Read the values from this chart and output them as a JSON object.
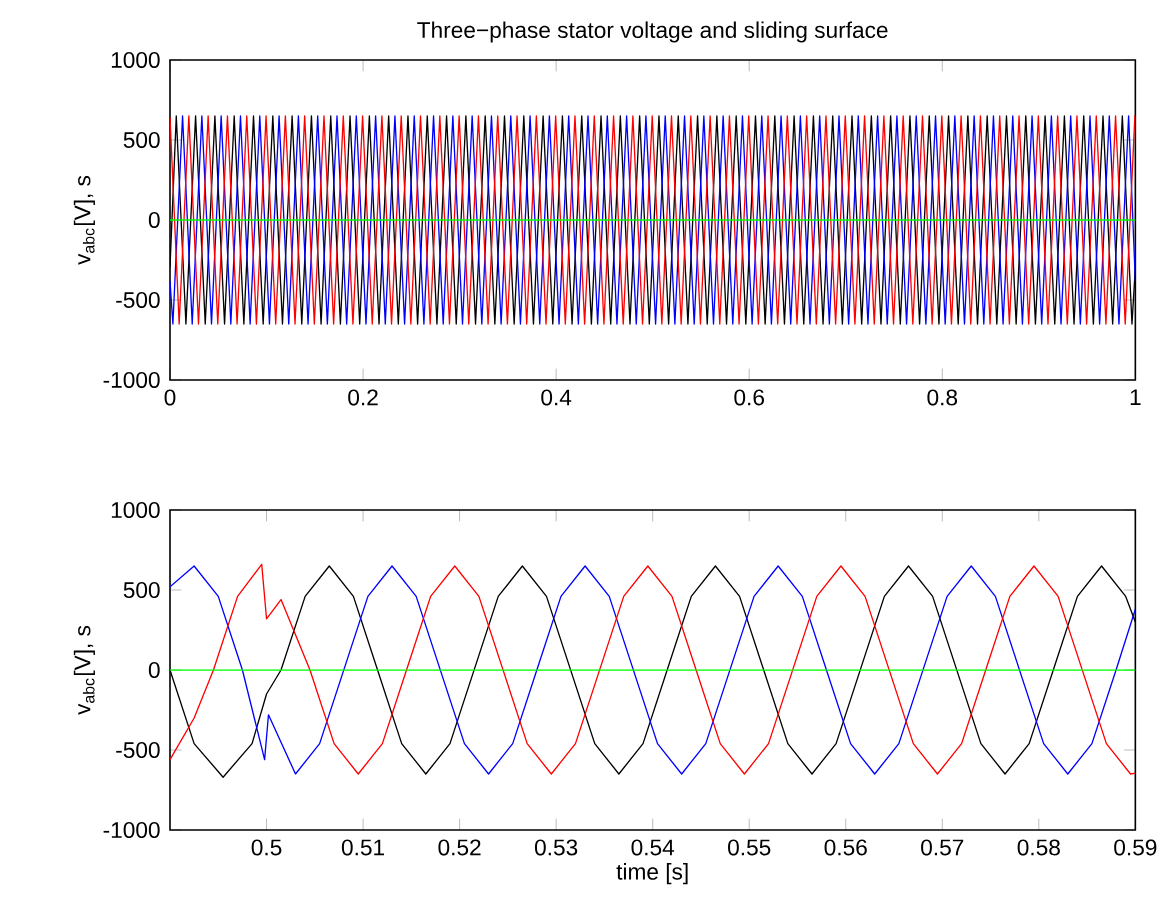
{
  "chart_data": [
    {
      "type": "line",
      "title": "Three−phase stator voltage and sliding surface",
      "ylabel": "v$_{abc}$[V], s",
      "xlim": [
        0,
        1
      ],
      "ylim": [
        -1000,
        1000
      ],
      "xticks": [
        0,
        0.2,
        0.4,
        0.6,
        0.8,
        1
      ],
      "yticks": [
        -1000,
        -500,
        0,
        500,
        1000
      ],
      "series": [
        {
          "color": "#000000",
          "x": [
            0,
            0.0065,
            0.0165,
            0.0265,
            0.0365,
            0.0465,
            0.0565,
            0.0665,
            0.0765,
            0.0865,
            0.0965,
            0.1065,
            0.1165,
            0.1265,
            0.1365,
            0.1465,
            0.1565,
            0.1665,
            0.1765,
            0.1865,
            0.1965,
            0.2065,
            0.2165,
            0.2265,
            0.2365,
            0.2465,
            0.2565,
            0.2665,
            0.2765,
            0.2865,
            0.2965,
            0.3065,
            0.3165,
            0.3265,
            0.3365,
            0.3465,
            0.3565,
            0.3665,
            0.3765,
            0.3865,
            0.3965,
            0.4065,
            0.4165,
            0.4265,
            0.4365,
            0.4465,
            0.4565,
            0.4665,
            0.4765,
            0.4865,
            0.4965,
            0.5065,
            0.5165,
            0.5265,
            0.5365,
            0.5465,
            0.5565,
            0.5665,
            0.5765,
            0.5865,
            0.5965,
            0.6065,
            0.6165,
            0.6265,
            0.6365,
            0.6465,
            0.6565,
            0.6665,
            0.6765,
            0.6865,
            0.6965,
            0.7065,
            0.7165,
            0.7265,
            0.7365,
            0.7465,
            0.7565,
            0.7665,
            0.7765,
            0.7865,
            0.7965,
            0.8065,
            0.8165,
            0.8265,
            0.8365,
            0.8465,
            0.8565,
            0.8665,
            0.8765,
            0.8865,
            0.8965,
            0.9065,
            0.9165,
            0.9265,
            0.9365,
            0.9465,
            0.9565,
            0.9665,
            0.9765,
            0.9865,
            0.9965,
            1
          ],
          "values": [
            -295,
            650,
            -650,
            650,
            -650,
            650,
            -650,
            650,
            -650,
            650,
            -650,
            650,
            -650,
            650,
            -650,
            650,
            -650,
            650,
            -650,
            650,
            -650,
            650,
            -650,
            650,
            -650,
            650,
            -650,
            650,
            -650,
            650,
            -650,
            650,
            -650,
            650,
            -650,
            650,
            -650,
            650,
            -650,
            650,
            -650,
            650,
            -650,
            650,
            -650,
            650,
            -650,
            650,
            -650,
            650,
            -650,
            650,
            -650,
            650,
            -650,
            650,
            -650,
            650,
            -650,
            650,
            -650,
            650,
            -650,
            650,
            -650,
            650,
            -650,
            650,
            -650,
            650,
            -650,
            650,
            -650,
            650,
            -650,
            650,
            -650,
            650,
            -650,
            650,
            -650,
            650,
            -650,
            650,
            -650,
            650,
            -650,
            650,
            -650,
            650,
            -650,
            650,
            -650,
            650,
            -650,
            650,
            -650,
            650,
            -650,
            650,
            -650,
            -295
          ]
        },
        {
          "color": "#0000ff",
          "x": [
            0,
            0.003,
            0.013,
            0.023,
            0.033,
            0.043,
            0.053,
            0.063,
            0.073,
            0.083,
            0.093,
            0.103,
            0.113,
            0.123,
            0.133,
            0.143,
            0.153,
            0.163,
            0.173,
            0.183,
            0.193,
            0.203,
            0.213,
            0.223,
            0.233,
            0.243,
            0.253,
            0.263,
            0.273,
            0.283,
            0.293,
            0.303,
            0.313,
            0.323,
            0.333,
            0.343,
            0.353,
            0.363,
            0.373,
            0.383,
            0.393,
            0.403,
            0.413,
            0.423,
            0.433,
            0.443,
            0.453,
            0.463,
            0.473,
            0.483,
            0.493,
            0.503,
            0.513,
            0.523,
            0.533,
            0.543,
            0.553,
            0.563,
            0.573,
            0.583,
            0.593,
            0.603,
            0.613,
            0.623,
            0.633,
            0.643,
            0.653,
            0.663,
            0.673,
            0.683,
            0.693,
            0.703,
            0.713,
            0.723,
            0.733,
            0.743,
            0.753,
            0.763,
            0.773,
            0.783,
            0.793,
            0.803,
            0.813,
            0.823,
            0.833,
            0.843,
            0.853,
            0.863,
            0.873,
            0.883,
            0.893,
            0.903,
            0.913,
            0.923,
            0.933,
            0.943,
            0.953,
            0.963,
            0.973,
            0.983,
            0.993,
            1
          ],
          "values": [
            -382,
            -650,
            650,
            -650,
            650,
            -650,
            650,
            -650,
            650,
            -650,
            650,
            -650,
            650,
            -650,
            650,
            -650,
            650,
            -650,
            650,
            -650,
            650,
            -650,
            650,
            -650,
            650,
            -650,
            650,
            -650,
            650,
            -650,
            650,
            -650,
            650,
            -650,
            650,
            -650,
            650,
            -650,
            650,
            -650,
            650,
            -650,
            650,
            -650,
            650,
            -650,
            650,
            -650,
            650,
            -650,
            650,
            -650,
            650,
            -650,
            650,
            -650,
            650,
            -650,
            650,
            -650,
            650,
            -650,
            650,
            -650,
            650,
            -650,
            650,
            -650,
            650,
            -650,
            650,
            -650,
            650,
            -650,
            650,
            -650,
            650,
            -650,
            650,
            -650,
            650,
            -650,
            650,
            -650,
            650,
            -650,
            650,
            -650,
            650,
            -650,
            650,
            -650,
            650,
            -650,
            650,
            -650,
            650,
            -650,
            650,
            -650,
            650,
            -382
          ]
        },
        {
          "color": "#ff0000",
          "x": [
            0,
            0.0095,
            0.0195,
            0.0295,
            0.0395,
            0.0495,
            0.0595,
            0.0695,
            0.0795,
            0.0895,
            0.0995,
            0.1095,
            0.1195,
            0.1295,
            0.1395,
            0.1495,
            0.1595,
            0.1695,
            0.1795,
            0.1895,
            0.1995,
            0.2095,
            0.2195,
            0.2295,
            0.2395,
            0.2495,
            0.2595,
            0.2695,
            0.2795,
            0.2895,
            0.2995,
            0.3095,
            0.3195,
            0.3295,
            0.3395,
            0.3495,
            0.3595,
            0.3695,
            0.3795,
            0.3895,
            0.3995,
            0.4095,
            0.4195,
            0.4295,
            0.4395,
            0.4495,
            0.4595,
            0.4695,
            0.4795,
            0.4895,
            0.4995,
            0.5095,
            0.5195,
            0.5295,
            0.5395,
            0.5495,
            0.5595,
            0.5695,
            0.5795,
            0.5895,
            0.5995,
            0.6095,
            0.6195,
            0.6295,
            0.6395,
            0.6495,
            0.6595,
            0.6695,
            0.6795,
            0.6895,
            0.6995,
            0.7095,
            0.7195,
            0.7295,
            0.7395,
            0.7495,
            0.7595,
            0.7695,
            0.7795,
            0.7895,
            0.7995,
            0.8095,
            0.8195,
            0.8295,
            0.8395,
            0.8495,
            0.8595,
            0.8695,
            0.8795,
            0.8895,
            0.8995,
            0.9095,
            0.9195,
            0.9295,
            0.9395,
            0.9495,
            0.9595,
            0.9695,
            0.9795,
            0.9895,
            0.9995,
            1
          ],
          "values": [
            642,
            -650,
            650,
            -650,
            650,
            -650,
            650,
            -650,
            650,
            -650,
            650,
            -650,
            650,
            -650,
            650,
            -650,
            650,
            -650,
            650,
            -650,
            650,
            -650,
            650,
            -650,
            650,
            -650,
            650,
            -650,
            650,
            -650,
            650,
            -650,
            650,
            -650,
            650,
            -650,
            650,
            -650,
            650,
            -650,
            650,
            -650,
            650,
            -650,
            650,
            -650,
            650,
            -650,
            650,
            -650,
            650,
            -650,
            650,
            -650,
            650,
            -650,
            650,
            -650,
            650,
            -650,
            650,
            -650,
            650,
            -650,
            650,
            -650,
            650,
            -650,
            650,
            -650,
            650,
            -650,
            650,
            -650,
            650,
            -650,
            650,
            -650,
            650,
            -650,
            650,
            -650,
            650,
            -650,
            650,
            -650,
            650,
            -650,
            650,
            -650,
            650,
            -650,
            650,
            -650,
            650,
            -650,
            650,
            -650,
            650,
            -650,
            650,
            648
          ]
        },
        {
          "color": "#00ff00",
          "x": [
            0,
            1
          ],
          "values": [
            0,
            0
          ]
        }
      ]
    },
    {
      "type": "line",
      "xlabel": "time [s]",
      "ylabel": "v$_{abc}$[V], s",
      "xlim": [
        0.49,
        0.59
      ],
      "ylim": [
        -1000,
        1000
      ],
      "xticks": [
        0.5,
        0.51,
        0.52,
        0.53,
        0.54,
        0.55,
        0.56,
        0.57,
        0.58,
        0.59
      ],
      "yticks": [
        -1000,
        -500,
        0,
        500,
        1000
      ],
      "series": [
        {
          "color": "#000000",
          "x": [
            0.49,
            0.4925,
            0.4955,
            0.4985,
            0.5,
            0.5015,
            0.504,
            0.5065,
            0.509,
            0.5115,
            0.514,
            0.5165,
            0.519,
            0.5215,
            0.524,
            0.5265,
            0.529,
            0.5315,
            0.534,
            0.5365,
            0.539,
            0.5415,
            0.544,
            0.5465,
            0.549,
            0.5515,
            0.554,
            0.5565,
            0.559,
            0.5615,
            0.564,
            0.5665,
            0.569,
            0.5715,
            0.574,
            0.5765,
            0.579,
            0.5815,
            0.584,
            0.5865,
            0.589,
            0.59
          ],
          "values": [
            0,
            -460,
            -670,
            -460,
            -150,
            0,
            460,
            650,
            460,
            0,
            -460,
            -650,
            -460,
            0,
            460,
            650,
            460,
            0,
            -460,
            -650,
            -460,
            0,
            460,
            650,
            460,
            0,
            -460,
            -650,
            -460,
            0,
            460,
            650,
            460,
            0,
            -460,
            -650,
            -460,
            0,
            460,
            650,
            460,
            300
          ]
        },
        {
          "color": "#0000ff",
          "x": [
            0.49,
            0.4925,
            0.495,
            0.4975,
            0.4998,
            0.5002,
            0.503,
            0.5055,
            0.508,
            0.5105,
            0.513,
            0.5155,
            0.518,
            0.5205,
            0.523,
            0.5255,
            0.528,
            0.5305,
            0.533,
            0.5355,
            0.538,
            0.5405,
            0.543,
            0.5455,
            0.548,
            0.5505,
            0.553,
            0.5555,
            0.558,
            0.5605,
            0.563,
            0.5655,
            0.568,
            0.5705,
            0.573,
            0.5755,
            0.578,
            0.5805,
            0.583,
            0.5855,
            0.588,
            0.59
          ],
          "values": [
            520,
            650,
            460,
            0,
            -560,
            -280,
            -650,
            -460,
            0,
            460,
            650,
            460,
            0,
            -460,
            -650,
            -460,
            0,
            460,
            650,
            460,
            0,
            -460,
            -650,
            -460,
            0,
            460,
            650,
            460,
            0,
            -460,
            -650,
            -460,
            0,
            460,
            650,
            460,
            0,
            -460,
            -650,
            -460,
            0,
            380
          ]
        },
        {
          "color": "#ff0000",
          "x": [
            0.49,
            0.4925,
            0.4945,
            0.497,
            0.4995,
            0.5,
            0.5015,
            0.5045,
            0.507,
            0.5095,
            0.512,
            0.5145,
            0.517,
            0.5195,
            0.522,
            0.5245,
            0.527,
            0.5295,
            0.532,
            0.5345,
            0.537,
            0.5395,
            0.542,
            0.5445,
            0.547,
            0.5495,
            0.552,
            0.5545,
            0.557,
            0.5595,
            0.562,
            0.5645,
            0.567,
            0.5695,
            0.572,
            0.5745,
            0.577,
            0.5795,
            0.582,
            0.5845,
            0.587,
            0.5895,
            0.59
          ],
          "values": [
            -560,
            -300,
            0,
            460,
            660,
            320,
            440,
            0,
            -460,
            -650,
            -460,
            0,
            460,
            650,
            460,
            0,
            -460,
            -650,
            -460,
            0,
            460,
            650,
            460,
            0,
            -460,
            -650,
            -460,
            0,
            460,
            650,
            460,
            0,
            -460,
            -650,
            -460,
            0,
            460,
            650,
            460,
            0,
            -460,
            -650,
            -645
          ]
        },
        {
          "color": "#00ff00",
          "x": [
            0.49,
            0.59
          ],
          "values": [
            0,
            0
          ]
        }
      ]
    }
  ]
}
